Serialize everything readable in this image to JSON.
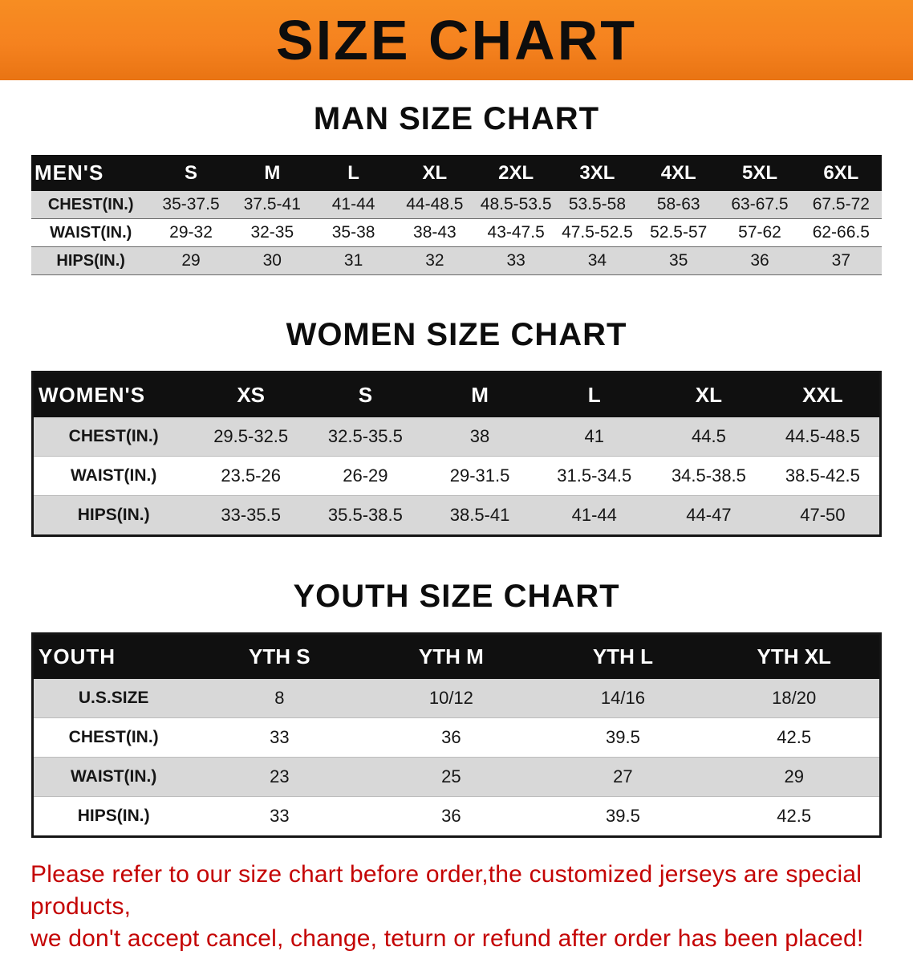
{
  "banner": {
    "title": "SIZE CHART",
    "bg_color": "#F5821F"
  },
  "sections": [
    {
      "id": "men",
      "heading": "MAN SIZE CHART",
      "header_label": "MEN'S",
      "columns": [
        "S",
        "M",
        "L",
        "XL",
        "2XL",
        "3XL",
        "4XL",
        "5XL",
        "6XL"
      ],
      "rows": [
        {
          "label": "CHEST(IN.)",
          "values": [
            "35-37.5",
            "37.5-41",
            "41-44",
            "44-48.5",
            "48.5-53.5",
            "53.5-58",
            "58-63",
            "63-67.5",
            "67.5-72"
          ]
        },
        {
          "label": "WAIST(IN.)",
          "values": [
            "29-32",
            "32-35",
            "35-38",
            "38-43",
            "43-47.5",
            "47.5-52.5",
            "52.5-57",
            "57-62",
            "62-66.5"
          ]
        },
        {
          "label": "HIPS(IN.)",
          "values": [
            "29",
            "30",
            "31",
            "32",
            "33",
            "34",
            "35",
            "36",
            "37"
          ]
        }
      ],
      "bordered": false
    },
    {
      "id": "women",
      "heading": "WOMEN SIZE CHART",
      "header_label": "WOMEN'S",
      "columns": [
        "XS",
        "S",
        "M",
        "L",
        "XL",
        "XXL"
      ],
      "rows": [
        {
          "label": "CHEST(IN.)",
          "values": [
            "29.5-32.5",
            "32.5-35.5",
            "38",
            "41",
            "44.5",
            "44.5-48.5"
          ]
        },
        {
          "label": "WAIST(IN.)",
          "values": [
            "23.5-26",
            "26-29",
            "29-31.5",
            "31.5-34.5",
            "34.5-38.5",
            "38.5-42.5"
          ]
        },
        {
          "label": "HIPS(IN.)",
          "values": [
            "33-35.5",
            "35.5-38.5",
            "38.5-41",
            "41-44",
            "44-47",
            "47-50"
          ]
        }
      ],
      "bordered": true
    },
    {
      "id": "youth",
      "heading": "YOUTH SIZE CHART",
      "header_label": "YOUTH",
      "columns": [
        "YTH S",
        "YTH M",
        "YTH L",
        "YTH XL"
      ],
      "rows": [
        {
          "label": "U.S.SIZE",
          "values": [
            "8",
            "10/12",
            "14/16",
            "18/20"
          ]
        },
        {
          "label": "CHEST(IN.)",
          "values": [
            "33",
            "36",
            "39.5",
            "42.5"
          ]
        },
        {
          "label": "WAIST(IN.)",
          "values": [
            "23",
            "25",
            "27",
            "29"
          ]
        },
        {
          "label": "HIPS(IN.)",
          "values": [
            "33",
            "36",
            "39.5",
            "42.5"
          ]
        }
      ],
      "bordered": true
    }
  ],
  "disclaimer": {
    "line1": "Please refer to our size chart before order,the customized jerseys are special products,",
    "line2": "we don't accept cancel, change, teturn or refund after order has been placed!",
    "color": "#c40404"
  }
}
